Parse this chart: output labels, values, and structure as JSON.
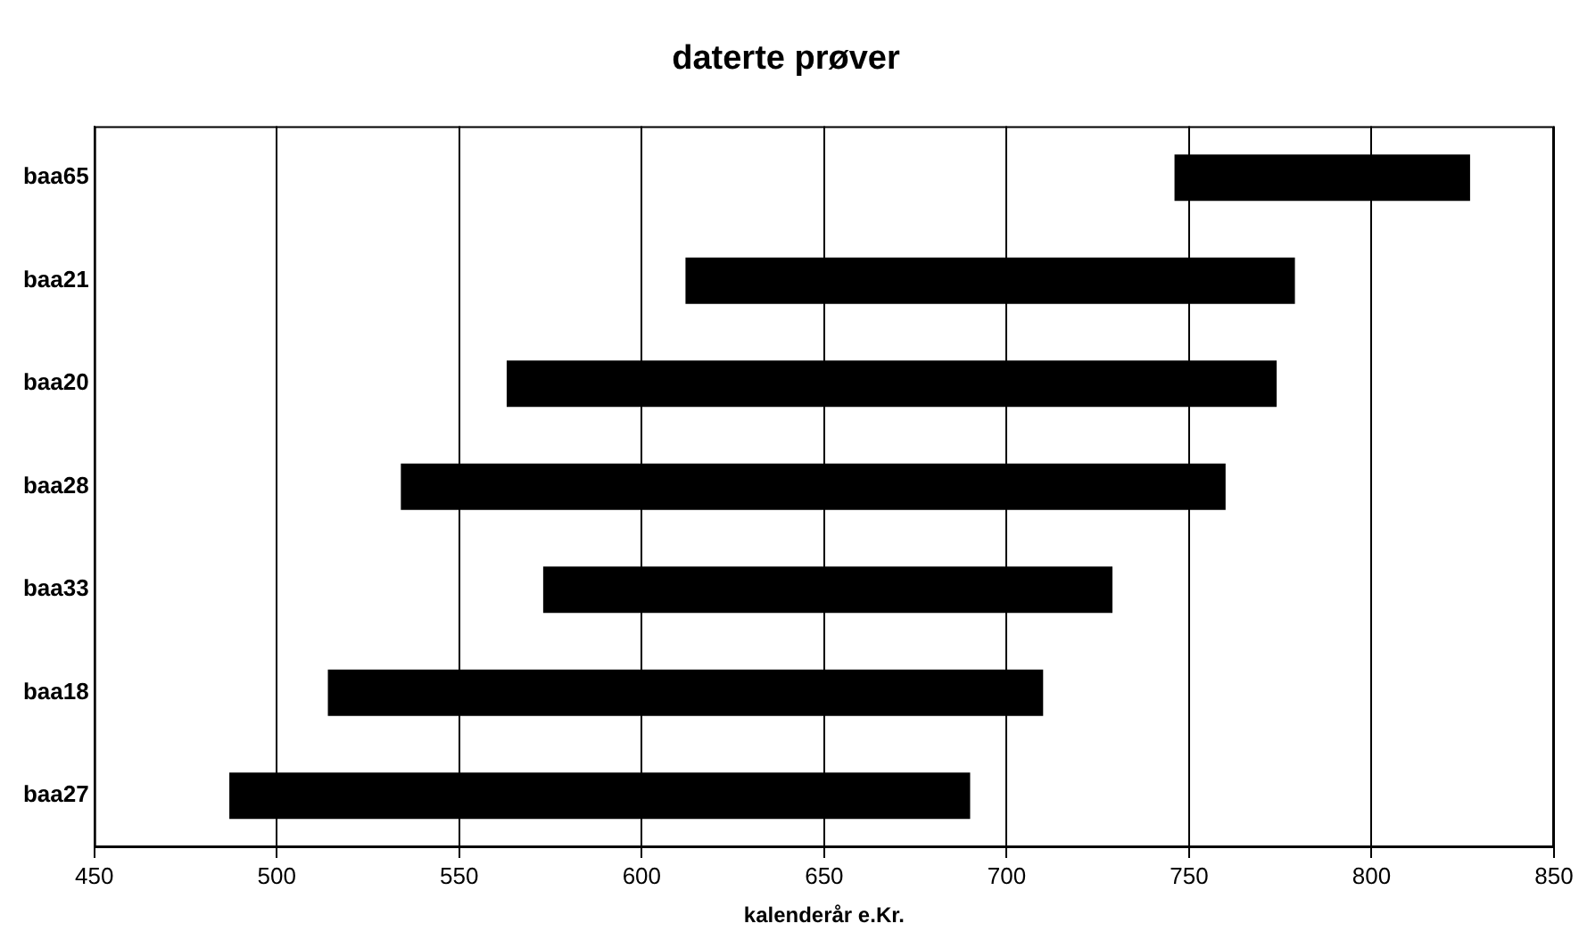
{
  "chart_data": {
    "type": "bar",
    "orientation": "horizontal",
    "title": "daterte prøver",
    "xlabel": "kalenderår e.Kr.",
    "categories": [
      "baa65",
      "baa21",
      "baa20",
      "baa28",
      "baa33",
      "baa18",
      "baa27"
    ],
    "base": [
      746,
      612,
      563,
      534,
      573,
      514,
      487
    ],
    "values": [
      81,
      167,
      211,
      226,
      156,
      196,
      203
    ],
    "color": "#000000",
    "xlim": [
      450,
      850
    ],
    "xticks": [
      450,
      500,
      550,
      600,
      650,
      700,
      750,
      800,
      850
    ],
    "grid": "x",
    "legend": false
  }
}
